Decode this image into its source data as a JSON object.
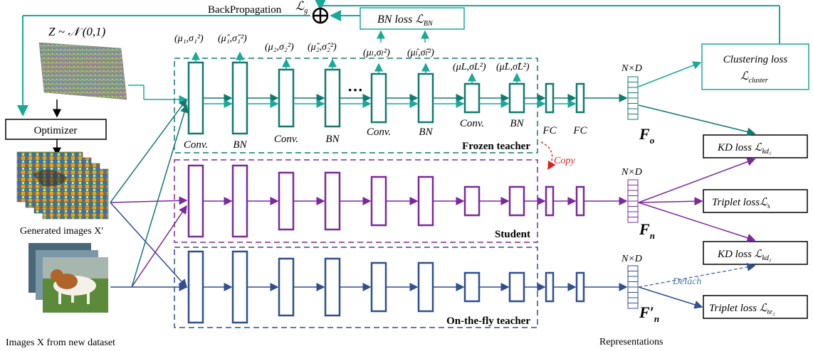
{
  "colors": {
    "teal": "#1aa89a",
    "teal_dark": "#117a6f",
    "purple": "#7a2a9a",
    "blue": "#2f4f8f",
    "red": "#e02020",
    "black": "#000000",
    "gray_blue": "#5a78b0"
  },
  "labels": {
    "backprop": "BackPropagation",
    "noise": "Z ~ 𝒩 (0,1)",
    "optimizer": "Optimizer",
    "generated": "Generated images X′",
    "new_dataset": "Images X from new dataset",
    "frozen_teacher": "Frozen teacher",
    "student": "Student",
    "onthefly_teacher": "On-the-fly teacher",
    "copy": "Copy",
    "detach": "Detach",
    "representations": "Representations",
    "nxd": "N×D",
    "f_o": "F",
    "f_o_sub": "o",
    "f_n": "F",
    "f_n_sub": "n",
    "f_n2": "F′",
    "f_n2_sub": "n",
    "lg": "ℒ",
    "lg_sub": "g"
  },
  "layer_labels": {
    "conv": "Conv.",
    "bn": "BN",
    "fc": "FC"
  },
  "stats": {
    "mu1": "(μ₁,σ₁²)",
    "mu1h": "(μ̂₁,σ̂₁²)",
    "mu2": "(μ₂,σ₂²)",
    "mu2h": "(μ̂₂,σ̂₂²)",
    "mul": "(μₗ,σₗ²)",
    "mulh": "(μ̂ₗ,σ̂ₗ²)",
    "muL": "(μL,σL²)",
    "muLh": "(μ̂L,σ̂L²)"
  },
  "losses": {
    "bn": "BN loss ℒ",
    "bn_sub": "BN",
    "cluster_1": "Clustering loss",
    "cluster_2": "ℒ",
    "cluster_sub": "cluster",
    "kd1": "KD loss ℒ",
    "kd1_sub": "kd₁",
    "triplet_s": "Triplet lossℒ",
    "triplet_s_sub": "s",
    "kd2": "KD loss ℒ",
    "kd2_sub": "kd₂",
    "triplet_te": "Triplet loss ℒ",
    "triplet_te_sub": "te₂"
  },
  "dots": "···"
}
